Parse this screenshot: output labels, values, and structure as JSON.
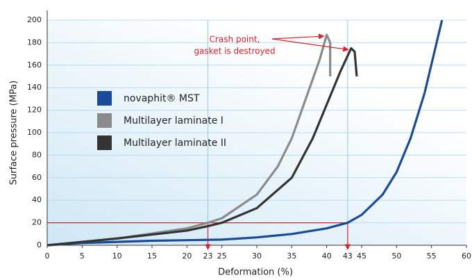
{
  "chart_data": {
    "type": "line",
    "xlabel": "Deformation (%)",
    "ylabel": "Surface pressure (MPa)",
    "xlim": [
      0,
      60
    ],
    "xticks": [
      0,
      5,
      10,
      15,
      20,
      23,
      25,
      30,
      35,
      40,
      43,
      45,
      50,
      55,
      60
    ],
    "ylim": [
      0,
      200
    ],
    "yticks": [
      0,
      20,
      40,
      60,
      80,
      100,
      120,
      140,
      160,
      180,
      200
    ],
    "grid": true,
    "x_markers": [
      23,
      43
    ],
    "y_marker": 20,
    "annotation": [
      "Crash point,",
      "gasket is destroyed"
    ],
    "series": [
      {
        "name": "novaphit® MST",
        "color": "#1a4a9a",
        "x": [
          0,
          5,
          10,
          15,
          20,
          25,
          30,
          35,
          40,
          43,
          45,
          48,
          50,
          52,
          54,
          56.5
        ],
        "values": [
          0,
          2,
          3,
          4,
          4.5,
          5,
          7,
          10,
          15,
          20,
          27,
          45,
          65,
          95,
          135,
          200
        ]
      },
      {
        "name": "Multilayer laminate I",
        "color": "#8a8a8a",
        "x": [
          0,
          10,
          20,
          23,
          25,
          30,
          33,
          35,
          37,
          39,
          40,
          40.5,
          40.5
        ],
        "values": [
          0,
          6,
          15,
          20,
          24,
          45,
          70,
          95,
          130,
          165,
          187,
          180,
          150
        ]
      },
      {
        "name": "Multilayer laminate II",
        "color": "#333333",
        "x": [
          0,
          10,
          20,
          23,
          25,
          30,
          35,
          38,
          40,
          42,
          43.5,
          44,
          44.3
        ],
        "values": [
          0,
          6,
          13,
          17,
          20,
          33,
          60,
          95,
          125,
          155,
          175,
          172,
          150
        ]
      }
    ]
  }
}
